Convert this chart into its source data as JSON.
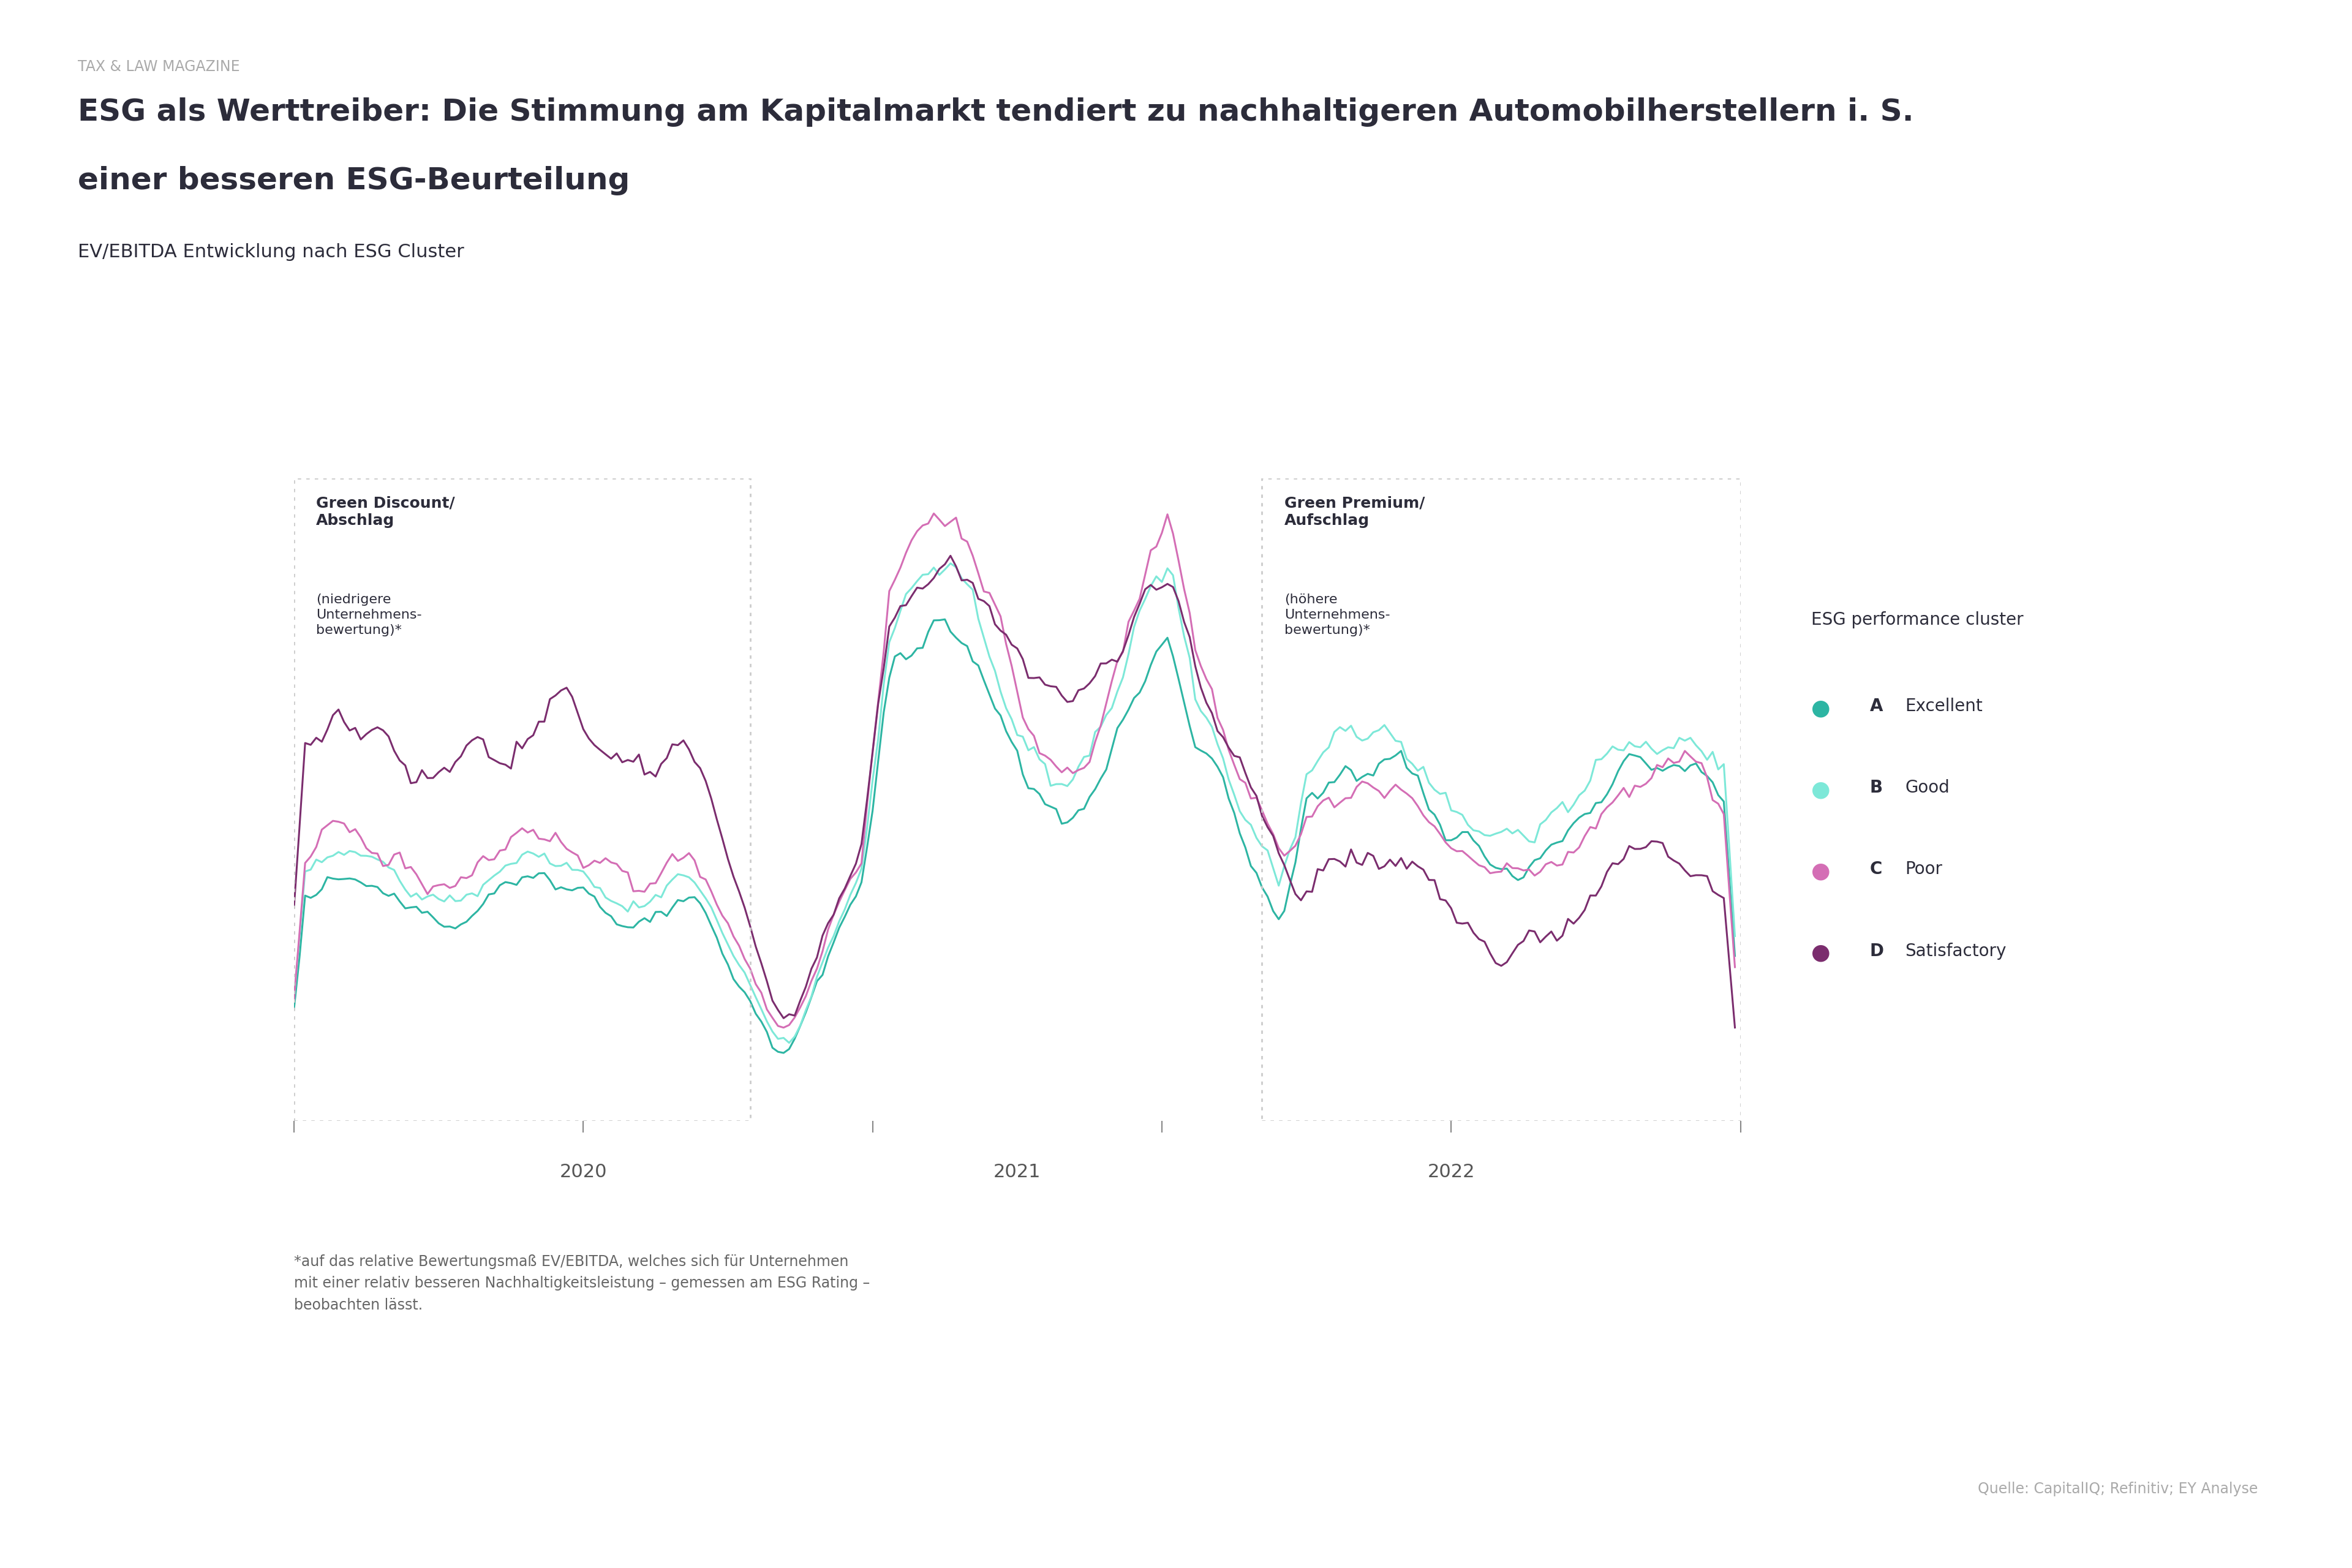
{
  "title_tag": "TAX & LAW MAGAZINE",
  "title_line1": "ESG als Werttreiber: Die Stimmung am Kapitalmarkt tendiert zu nachhaltigeren Automobilherstellern i. S.",
  "title_line2": "einer besseren ESG-Beurteilung",
  "subtitle": "EV/EBITDA Entwicklung nach ESG Cluster",
  "footnote": "*auf das relative Bewertungsmaß EV/EBITDA, welches sich für Unternehmen\nmit einer relativ besseren Nachhaltigkeitsleistung – gemessen am ESG Rating –\nbeobachten lässt.",
  "source": "Quelle: CapitalIQ; Refinitiv; EY Analyse",
  "legend_title": "ESG performance cluster",
  "legend_entries": [
    {
      "letter": "A",
      "label": "Excellent",
      "color": "#2db5a3"
    },
    {
      "letter": "B",
      "label": "Good",
      "color": "#7de8d8"
    },
    {
      "letter": "C",
      "label": "Poor",
      "color": "#d46eb5"
    },
    {
      "letter": "D",
      "label": "Satisfactory",
      "color": "#7b2d6e"
    }
  ],
  "background_color": "#ffffff",
  "line_colors": [
    "#2db5a3",
    "#7de8d8",
    "#d46eb5",
    "#7b2d6e"
  ],
  "tag_color": "#aaaaaa",
  "title_color": "#2c2c3a",
  "subtitle_color": "#2c2c3a",
  "box_label_color": "#2c2c3a",
  "footnote_color": "#666666",
  "source_color": "#aaaaaa",
  "year_label_color": "#555555",
  "box_edge_color": "#cccccc"
}
